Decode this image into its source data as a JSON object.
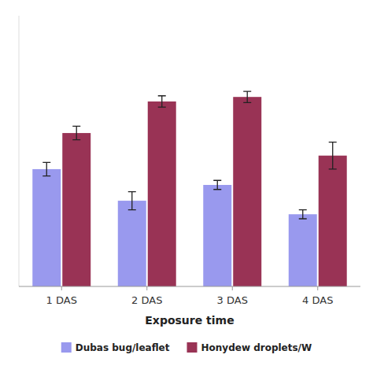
{
  "chart_data": {
    "type": "bar",
    "xlabel": "Exposure time",
    "categories": [
      "1 DAS",
      "2 DAS",
      "3 DAS",
      "4 DAS"
    ],
    "series": [
      {
        "name": "Dubas bug/leaflet",
        "color": "#9999EE",
        "values": [
          5.2,
          3.8,
          4.5,
          3.2
        ],
        "errors": [
          0.3,
          0.4,
          0.2,
          0.2
        ]
      },
      {
        "name": "Honydew droplets/W",
        "color": "#993355",
        "values": [
          6.8,
          8.2,
          8.4,
          5.8
        ],
        "errors": [
          0.3,
          0.25,
          0.25,
          0.6
        ]
      }
    ],
    "ylim": [
      0,
      12
    ],
    "tick_labels": "x",
    "grid": false,
    "legend": "bottom"
  }
}
